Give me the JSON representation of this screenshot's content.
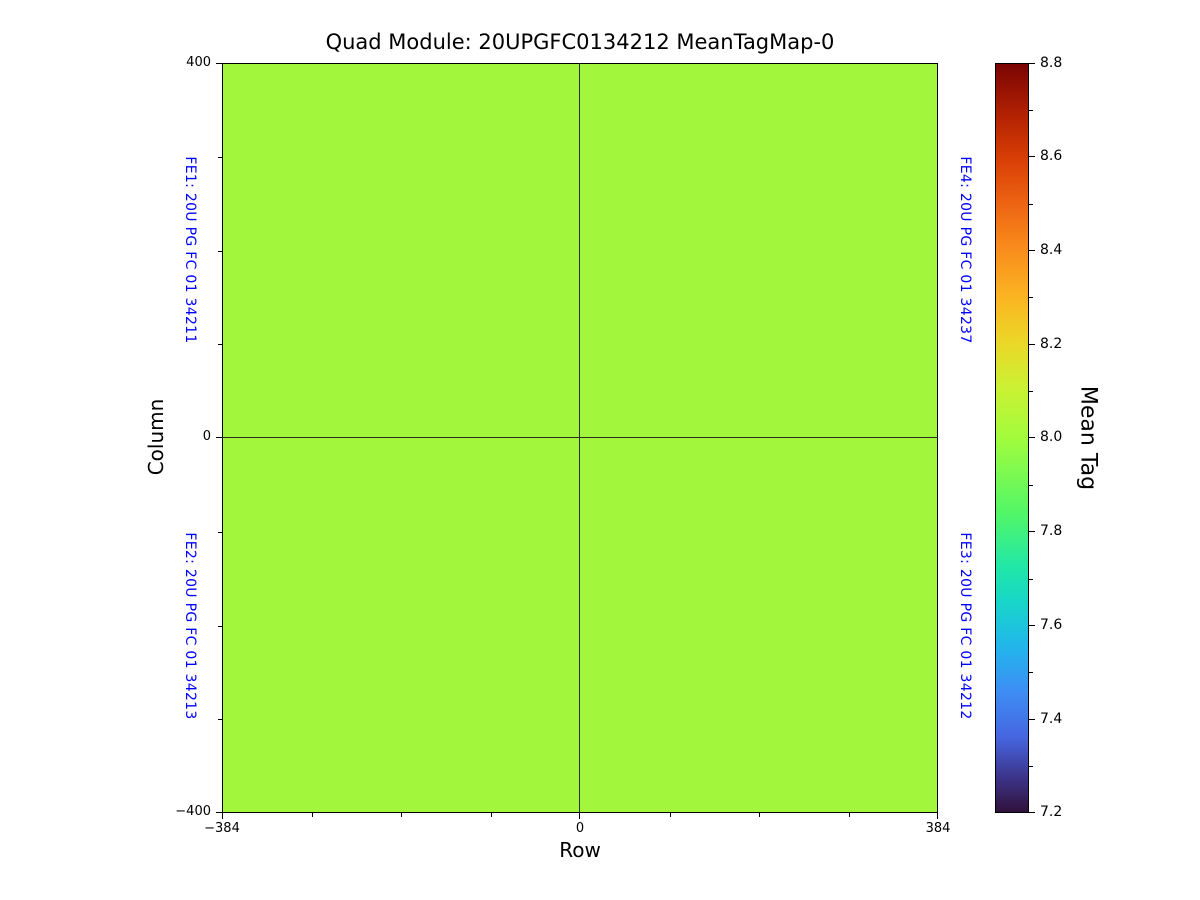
{
  "chart_data": {
    "type": "heatmap",
    "title": "Quad Module: 20UPGFC0134212 MeanTagMap-0",
    "xlabel": "Row",
    "ylabel": "Column",
    "xlim": [
      -384,
      384
    ],
    "ylim": [
      -400,
      400
    ],
    "x_ticks": [
      "−384",
      "0",
      "384"
    ],
    "x_tick_values": [
      -384,
      0,
      384
    ],
    "x_minor_tick_values": [
      -288,
      -192,
      -96,
      96,
      192,
      288
    ],
    "y_ticks": [
      "400",
      "0",
      "−400"
    ],
    "y_tick_values": [
      400,
      0,
      -400
    ],
    "y_minor_tick_values": [
      300,
      200,
      100,
      -100,
      -200,
      -300
    ],
    "grid": false,
    "divider_lines": {
      "vertical_at_row": 0,
      "horizontal_at_column": 0
    },
    "uniform_map_value": 8.0,
    "map_fill_color": "#a2f73c",
    "colormap": "turbo",
    "series": [
      {
        "name": "FE1",
        "quadrant": "upper-left",
        "mean_tag": 8.0
      },
      {
        "name": "FE2",
        "quadrant": "lower-left",
        "mean_tag": 8.0
      },
      {
        "name": "FE3",
        "quadrant": "lower-right",
        "mean_tag": 8.0
      },
      {
        "name": "FE4",
        "quadrant": "upper-right",
        "mean_tag": 8.0
      }
    ],
    "quadrant_labels": [
      {
        "fe": "FE1",
        "text": "FE1: 20U PG FC 01 34211",
        "side": "left",
        "half": "top"
      },
      {
        "fe": "FE2",
        "text": "FE2: 20U PG FC 01 34213",
        "side": "left",
        "half": "bottom"
      },
      {
        "fe": "FE3",
        "text": "FE3: 20U PG FC 01 34212",
        "side": "right",
        "half": "bottom"
      },
      {
        "fe": "FE4",
        "text": "FE4: 20U PG FC 01 34237",
        "side": "right",
        "half": "top"
      }
    ],
    "colorbar": {
      "label": "Mean Tag",
      "min": 7.2,
      "max": 8.8,
      "ticks": [
        "8.8",
        "8.6",
        "8.4",
        "8.2",
        "8.0",
        "7.8",
        "7.6",
        "7.4",
        "7.2"
      ],
      "tick_values": [
        8.8,
        8.6,
        8.4,
        8.2,
        8.0,
        7.8,
        7.6,
        7.4,
        7.2
      ],
      "minor_tick_values": [
        8.7,
        8.5,
        8.3,
        8.1,
        7.9,
        7.7,
        7.5,
        7.3
      ],
      "position": "right"
    },
    "label_color": "#0000ff"
  }
}
